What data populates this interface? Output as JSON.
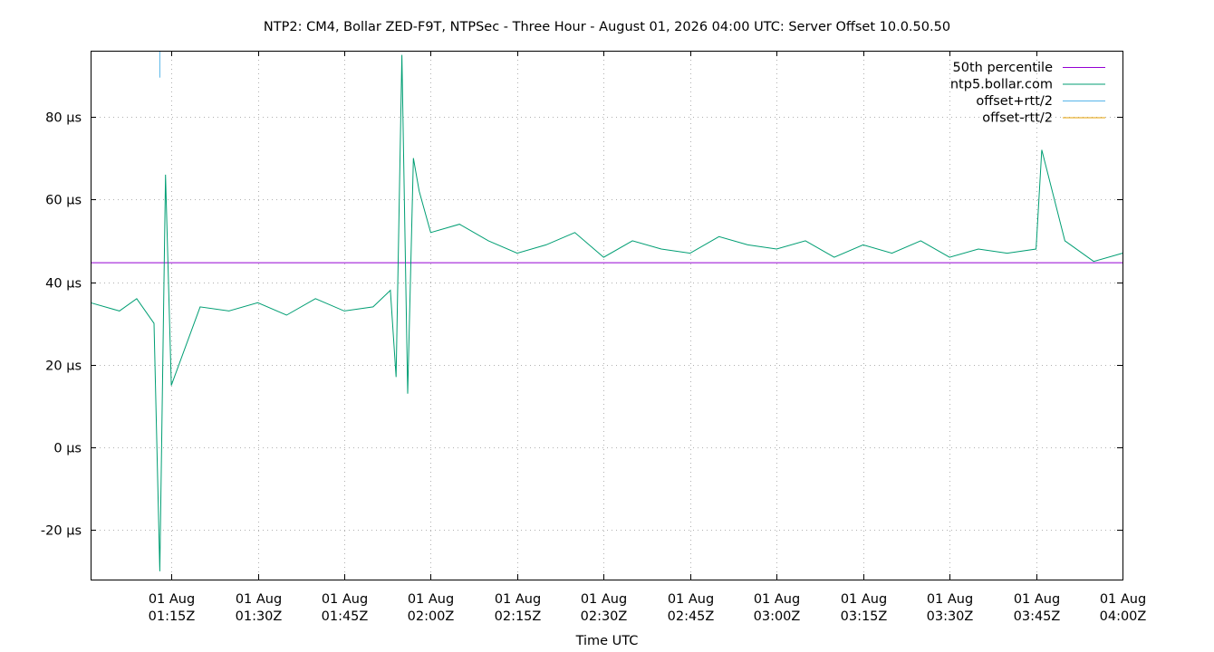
{
  "chart_data": {
    "type": "line",
    "title": "NTP2: CM4, Bollar ZED-F9T, NTPSec - Three Hour - August 01, 2026 04:00 UTC: Server Offset 10.0.50.50",
    "xlabel": "Time UTC",
    "ylabel": "",
    "xlim": [
      "01:01",
      "04:00"
    ],
    "ylim": [
      -32,
      96
    ],
    "grid": true,
    "legend_position": "top-right",
    "x_ticks": [
      {
        "date": "01 Aug",
        "time": "01:15Z",
        "minute": 75
      },
      {
        "date": "01 Aug",
        "time": "01:30Z",
        "minute": 90
      },
      {
        "date": "01 Aug",
        "time": "01:45Z",
        "minute": 105
      },
      {
        "date": "01 Aug",
        "time": "02:00Z",
        "minute": 120
      },
      {
        "date": "01 Aug",
        "time": "02:15Z",
        "minute": 135
      },
      {
        "date": "01 Aug",
        "time": "02:30Z",
        "minute": 150
      },
      {
        "date": "01 Aug",
        "time": "02:45Z",
        "minute": 165
      },
      {
        "date": "01 Aug",
        "time": "03:00Z",
        "minute": 180
      },
      {
        "date": "01 Aug",
        "time": "03:15Z",
        "minute": 195
      },
      {
        "date": "01 Aug",
        "time": "03:30Z",
        "minute": 210
      },
      {
        "date": "01 Aug",
        "time": "03:45Z",
        "minute": 225
      },
      {
        "date": "01 Aug",
        "time": "04:00Z",
        "minute": 240
      }
    ],
    "y_ticks": [
      {
        "label": "80 µs",
        "value": 80
      },
      {
        "label": "60 µs",
        "value": 60
      },
      {
        "label": "40 µs",
        "value": 40
      },
      {
        "label": "20 µs",
        "value": 20
      },
      {
        "label": "0 µs",
        "value": 0
      },
      {
        "label": "-20 µs",
        "value": -20
      }
    ],
    "series": [
      {
        "name": "50th percentile",
        "color": "#9400d3",
        "x": [
          "01:01",
          "04:00"
        ],
        "values": [
          44.7,
          44.7
        ]
      },
      {
        "name": "ntp5.bollar.com",
        "color": "#009e73",
        "x": [
          "01:01",
          "01:06",
          "01:09",
          "01:12",
          "01:13",
          "01:14",
          "01:15",
          "01:20",
          "01:25",
          "01:30",
          "01:35",
          "01:40",
          "01:45",
          "01:50",
          "01:53",
          "01:54",
          "01:55",
          "01:56",
          "01:57",
          "01:58",
          "02:00",
          "02:05",
          "02:10",
          "02:15",
          "02:20",
          "02:25",
          "02:30",
          "02:35",
          "02:40",
          "02:45",
          "02:50",
          "02:55",
          "03:00",
          "03:05",
          "03:10",
          "03:15",
          "03:20",
          "03:25",
          "03:30",
          "03:35",
          "03:40",
          "03:45",
          "03:46",
          "03:50",
          "03:55",
          "04:00"
        ],
        "values": [
          35,
          33,
          36,
          30,
          -30,
          66,
          15,
          34,
          33,
          35,
          32,
          36,
          33,
          34,
          38,
          17,
          95,
          13,
          70,
          62,
          52,
          54,
          50,
          47,
          49,
          52,
          46,
          50,
          48,
          47,
          51,
          49,
          48,
          50,
          46,
          49,
          47,
          50,
          46,
          48,
          47,
          48,
          72,
          50,
          45,
          47
        ]
      },
      {
        "name": "offset+rtt/2",
        "color": "#56b4e9",
        "x": [
          "01:13",
          "01:13"
        ],
        "values": [
          89.5,
          96
        ]
      },
      {
        "name": "offset-rtt/2",
        "color": "#e69f00",
        "x": [],
        "values": []
      }
    ]
  }
}
